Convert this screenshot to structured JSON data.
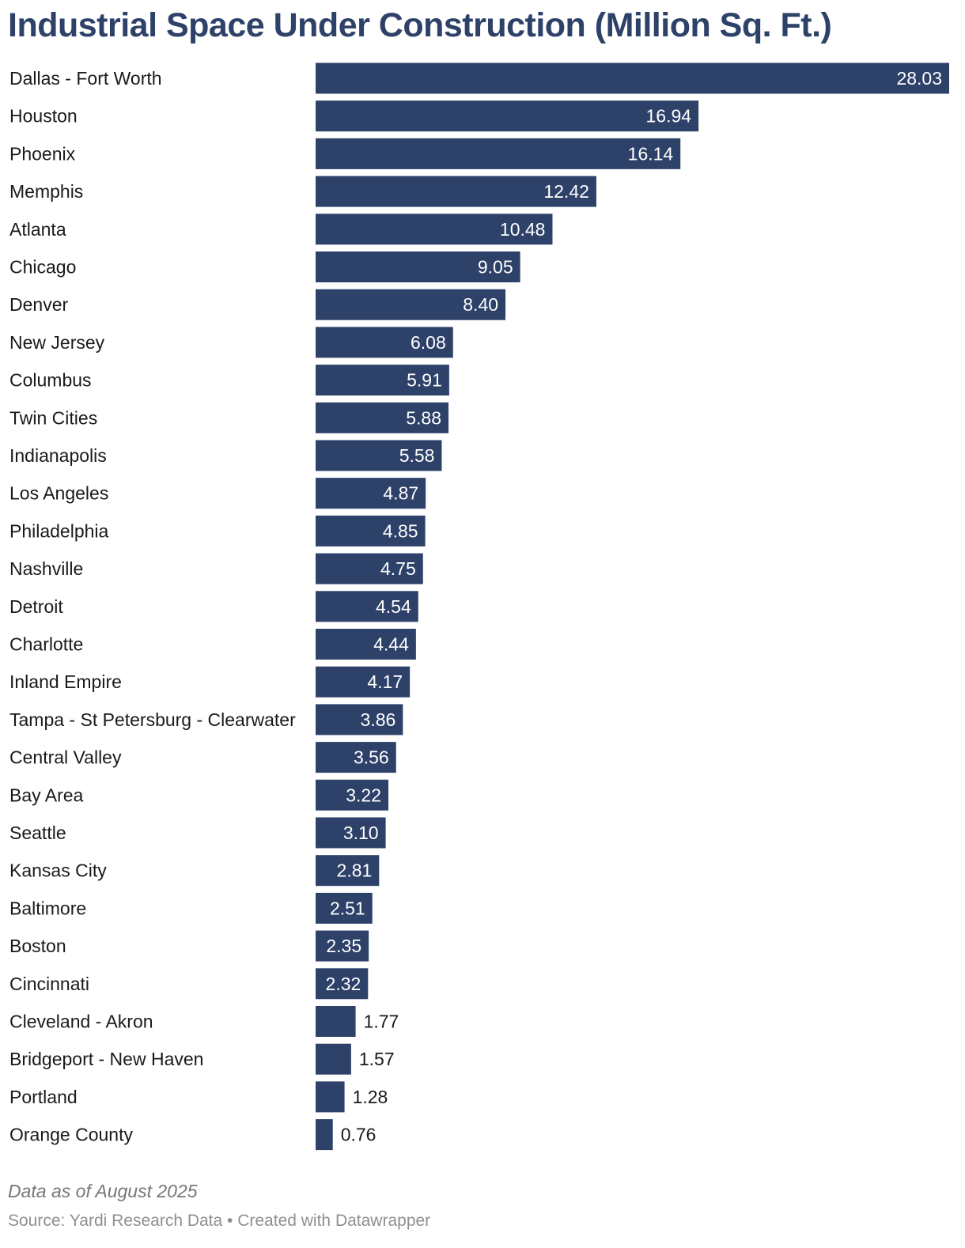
{
  "chart_data": {
    "type": "bar",
    "orientation": "horizontal",
    "title": "Industrial Space Under Construction (Million Sq. Ft.)",
    "categories": [
      "Dallas - Fort Worth",
      "Houston",
      "Phoenix",
      "Memphis",
      "Atlanta",
      "Chicago",
      "Denver",
      "New Jersey",
      "Columbus",
      "Twin Cities",
      "Indianapolis",
      "Los Angeles",
      "Philadelphia",
      "Nashville",
      "Detroit",
      "Charlotte",
      "Inland Empire",
      "Tampa - St Petersburg - Clearwater",
      "Central Valley",
      "Bay Area",
      "Seattle",
      "Kansas City",
      "Baltimore",
      "Boston",
      "Cincinnati",
      "Cleveland - Akron",
      "Bridgeport - New Haven",
      "Portland",
      "Orange County"
    ],
    "values": [
      28.03,
      16.94,
      16.14,
      12.42,
      10.48,
      9.05,
      8.4,
      6.08,
      5.91,
      5.88,
      5.58,
      4.87,
      4.85,
      4.75,
      4.54,
      4.44,
      4.17,
      3.86,
      3.56,
      3.22,
      3.1,
      2.81,
      2.51,
      2.35,
      2.32,
      1.77,
      1.57,
      1.28,
      0.76
    ],
    "value_format": "2 decimals",
    "xlim": [
      0,
      28.03
    ],
    "grid": false,
    "legend": "none",
    "bar_color": "#2d4169",
    "label_inside_color": "#ffffff",
    "label_outside_color": "#1a1a1a",
    "note": "Data as of August 2025",
    "source": "Source: Yardi Research Data • Created with Datawrapper"
  }
}
